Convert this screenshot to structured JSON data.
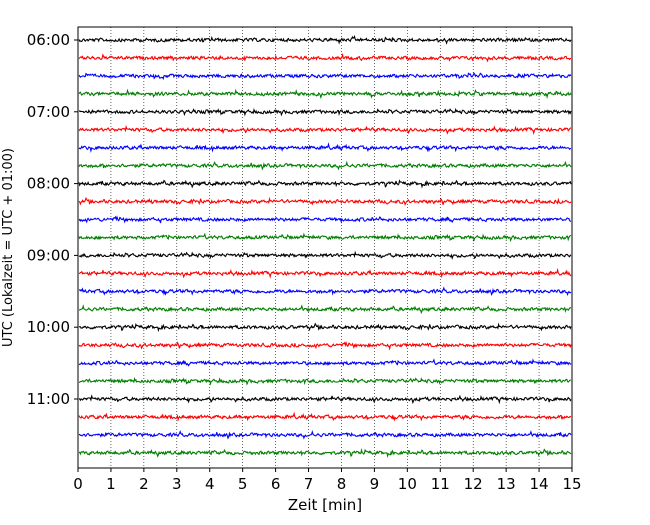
{
  "chart_data": {
    "type": "line",
    "title": "",
    "xlabel": "Zeit  [min]",
    "ylabel": "UTC (Lokalzeit = UTC + 01:00)",
    "xlim": [
      0,
      15
    ],
    "x_ticks": [
      "0",
      "1",
      "2",
      "3",
      "4",
      "5",
      "6",
      "7",
      "8",
      "9",
      "10",
      "11",
      "12",
      "13",
      "14",
      "15"
    ],
    "y_tick_labels": [
      "06:00",
      "07:00",
      "08:00",
      "09:00",
      "10:00",
      "11:00"
    ],
    "trace_start_times": [
      "06:00",
      "06:15",
      "06:30",
      "06:45",
      "07:00",
      "07:15",
      "07:30",
      "07:45",
      "08:00",
      "08:15",
      "08:30",
      "08:45",
      "09:00",
      "09:15",
      "09:30",
      "09:45",
      "10:00",
      "10:15",
      "10:30",
      "10:45",
      "11:00",
      "11:15",
      "11:30",
      "11:45"
    ],
    "trace_colors": [
      "#000000",
      "#ff0000",
      "#0000ff",
      "#007f00"
    ],
    "grid": {
      "x": true,
      "y": false
    },
    "series_description_note": ""
  }
}
